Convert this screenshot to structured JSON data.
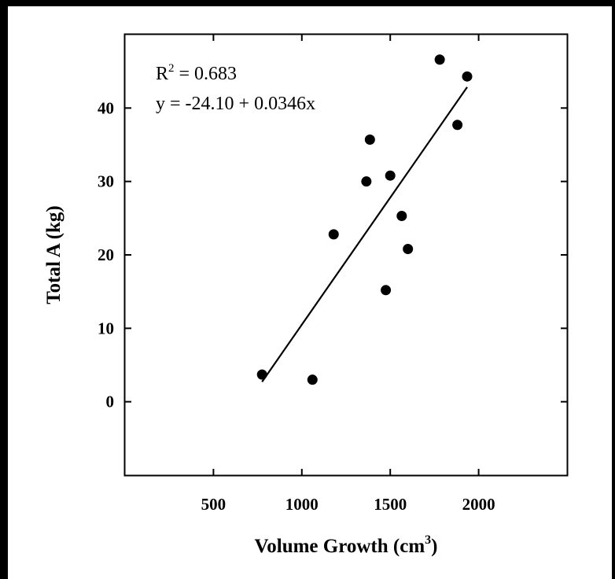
{
  "chart_data": {
    "type": "scatter",
    "title": "",
    "xlabel": "Volume Growth (cm",
    "xlabel_sup": "3",
    "xlabel_close": ")",
    "ylabel": "Total A (kg)",
    "xlim": [
      0,
      2500
    ],
    "ylim": [
      -10,
      50
    ],
    "xticks": [
      500,
      1000,
      1500,
      2000
    ],
    "yticks": [
      0,
      10,
      20,
      30,
      40
    ],
    "grid": false,
    "points": [
      {
        "x": 775,
        "y": 3.7
      },
      {
        "x": 1060,
        "y": 3.0
      },
      {
        "x": 1180,
        "y": 22.8
      },
      {
        "x": 1365,
        "y": 30.0
      },
      {
        "x": 1385,
        "y": 35.7
      },
      {
        "x": 1475,
        "y": 15.2
      },
      {
        "x": 1500,
        "y": 30.8
      },
      {
        "x": 1565,
        "y": 25.3
      },
      {
        "x": 1600,
        "y": 20.8
      },
      {
        "x": 1780,
        "y": 46.6
      },
      {
        "x": 1880,
        "y": 37.7
      },
      {
        "x": 1935,
        "y": 44.3
      }
    ],
    "regression": {
      "intercept": -24.1,
      "slope": 0.0346,
      "x_range": [
        775,
        1935
      ]
    },
    "annotations": {
      "r2_prefix": "R",
      "r2_sup": "2",
      "r2_value": " = 0.683",
      "equation": "y = -24.10 + 0.0346x"
    },
    "colors": {
      "marker": "#000000",
      "line": "#000000",
      "background": "#ffffff",
      "border": "#000000"
    }
  }
}
